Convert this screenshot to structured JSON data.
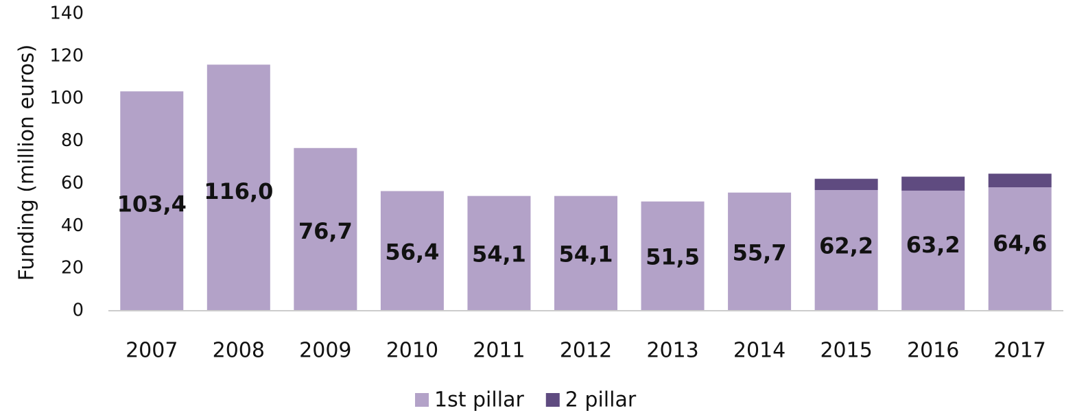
{
  "chart_data": {
    "type": "stacked_bar",
    "y_label": "Funding (million euros)",
    "categories": [
      "2007",
      "2008",
      "2009",
      "2010",
      "2011",
      "2012",
      "2013",
      "2014",
      "2015",
      "2016",
      "2017"
    ],
    "series": [
      {
        "name": "1st pillar",
        "color": "#b3a2c8",
        "values": [
          103.4,
          116.0,
          76.7,
          56.4,
          54.1,
          54.1,
          51.5,
          55.7,
          56.9,
          56.6,
          58.2
        ]
      },
      {
        "name": "2 pillar",
        "color": "#5f4b80",
        "values": [
          0,
          0,
          0,
          0,
          0,
          0,
          0,
          0,
          5.3,
          6.6,
          6.4
        ]
      }
    ],
    "totals": [
      103.4,
      116.0,
      76.7,
      56.4,
      54.1,
      54.1,
      51.5,
      55.7,
      62.2,
      63.2,
      64.6
    ],
    "total_labels": [
      "103,4",
      "116,0",
      "76,7",
      "56,4",
      "54,1",
      "54,1",
      "51,5",
      "55,7",
      "62,2",
      "63,2",
      "64,6"
    ],
    "ylim": [
      0,
      140
    ],
    "yticks": [
      0,
      20,
      40,
      60,
      80,
      100,
      120,
      140
    ],
    "grid": false,
    "legend": "bottom"
  }
}
